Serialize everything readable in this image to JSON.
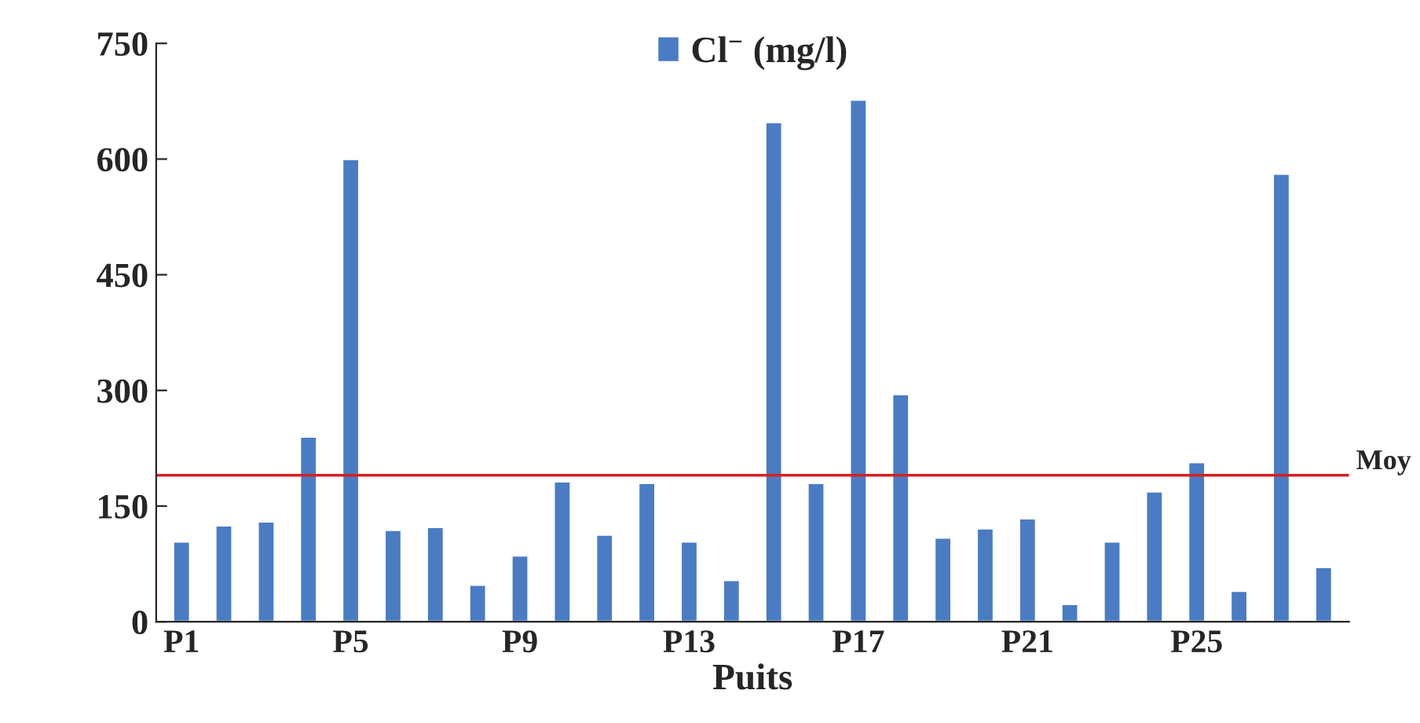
{
  "chart_data": {
    "type": "bar",
    "xlabel": "Puits",
    "categories": [
      "P1",
      null,
      null,
      null,
      "P5",
      null,
      null,
      null,
      "P9",
      null,
      null,
      null,
      "P13",
      null,
      null,
      null,
      "P17",
      null,
      null,
      null,
      "P21",
      null,
      null,
      null,
      "P25",
      null,
      null,
      null
    ],
    "series": [
      {
        "name": "Cl$^{−}$ (mg/l)",
        "color": "#4a7cc4",
        "values": [
          104,
          125,
          130,
          240,
          600,
          119,
          123,
          48,
          86,
          182,
          113,
          180,
          104,
          54,
          648,
          180,
          677,
          295,
          109,
          121,
          134,
          23,
          104,
          169,
          207,
          40,
          581,
          71
        ]
      }
    ],
    "ylim": [
      0,
      750
    ],
    "yticks": [
      0,
      150,
      300,
      450,
      600,
      750
    ],
    "ref_lines": [
      {
        "axis": "y",
        "value": 190,
        "label": "Moy",
        "color": "#d62020"
      }
    ],
    "legend": "top",
    "grid": false
  }
}
